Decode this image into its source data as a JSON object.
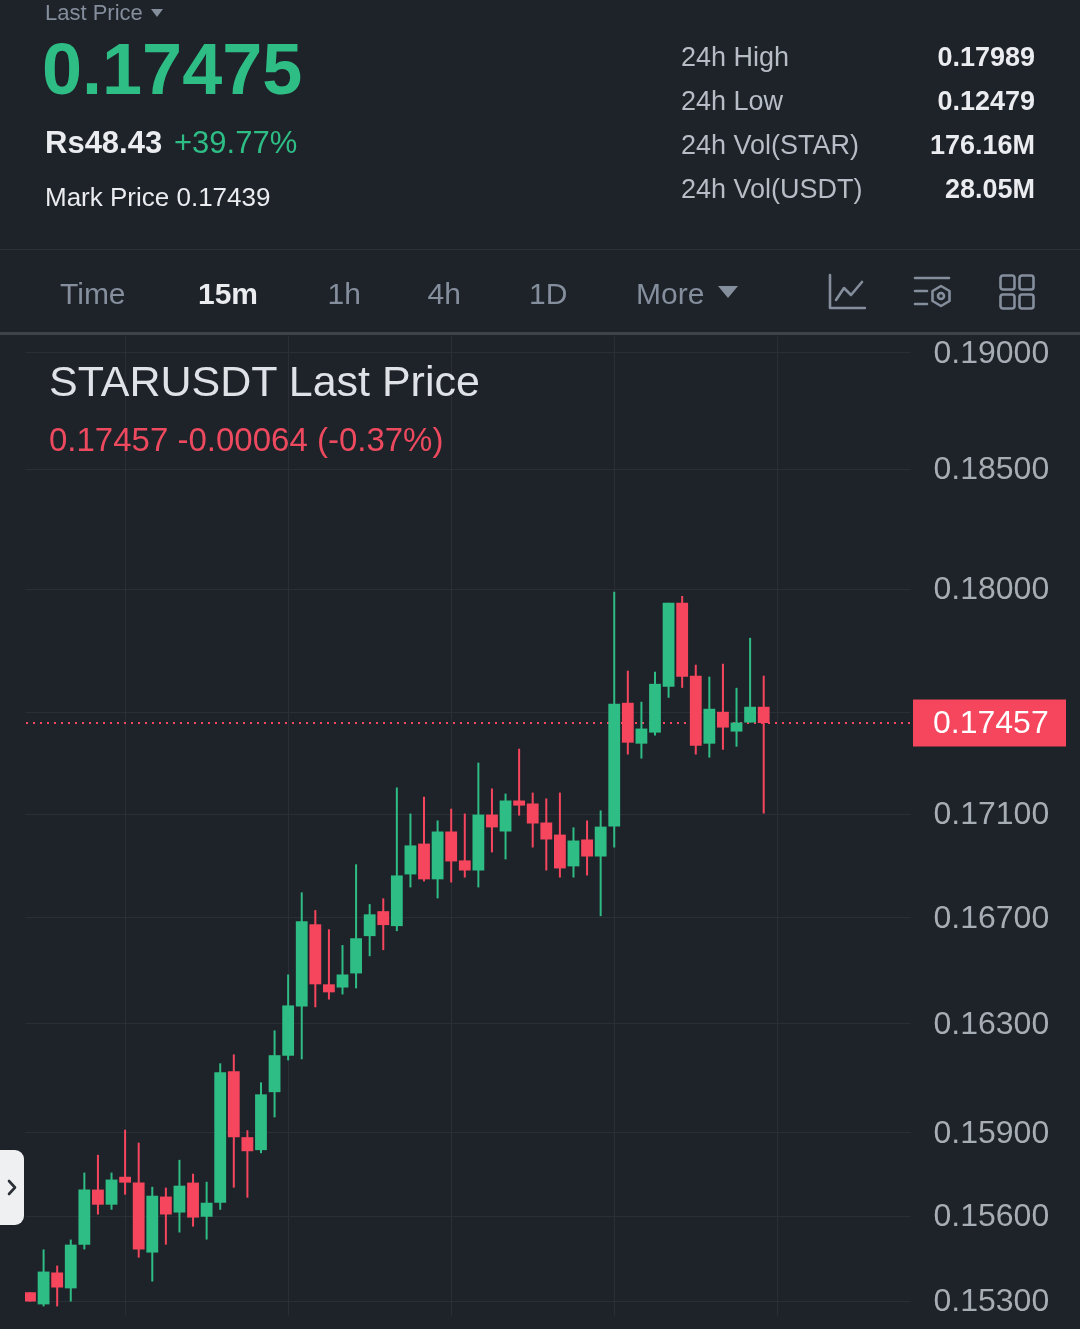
{
  "chart_data": [
    {
      "type": "other",
      "annotations": [
        "Last Price",
        "0.17475",
        "Rs48.43",
        "+39.77%",
        "Mark Price 0.17439",
        "24h High",
        "0.17989",
        "24h Low",
        "0.12479",
        "24h Vol(STAR)",
        "176.16M",
        "24h Vol(USDT)",
        "28.05M"
      ]
    },
    {
      "type": "other",
      "annotations": [
        "Time",
        "15m",
        "1h",
        "4h",
        "1D",
        "More"
      ]
    },
    {
      "type": "candlestick",
      "title": "STARUSDT Last Price",
      "subtitle": "0.17457 -0.00064 (-0.37%)",
      "categories": [
        null,
        null,
        null,
        null,
        null,
        null,
        null,
        null,
        null,
        null,
        null,
        null,
        null,
        null,
        null,
        null,
        null,
        null,
        null,
        null,
        null,
        null,
        null,
        null,
        null,
        null,
        null,
        null,
        null,
        null,
        null,
        null,
        null,
        null,
        null,
        null,
        null,
        null,
        null,
        null,
        null,
        null,
        null,
        null,
        null,
        null,
        null,
        null,
        null,
        null,
        null,
        null,
        null,
        null,
        null
      ],
      "ohlc": [
        [
          0.15329,
          0.15329,
          0.15297,
          0.15297
        ],
        [
          0.15287,
          0.1548,
          0.1528,
          0.15402
        ],
        [
          0.15399,
          0.15423,
          0.1528,
          0.15346
        ],
        [
          0.15343,
          0.15515,
          0.15297,
          0.15497
        ],
        [
          0.15497,
          0.15754,
          0.1548,
          0.15693
        ],
        [
          0.15693,
          0.15818,
          0.15604,
          0.15639
        ],
        [
          0.15639,
          0.15754,
          0.15621,
          0.15729
        ],
        [
          0.15739,
          0.15909,
          0.15675,
          0.15718
        ],
        [
          0.15718,
          0.15862,
          0.15451,
          0.1548
        ],
        [
          0.15469,
          0.15703,
          0.15367,
          0.15671
        ],
        [
          0.15668,
          0.157,
          0.15497,
          0.15604
        ],
        [
          0.15611,
          0.158,
          0.1554,
          0.15707
        ],
        [
          0.15718,
          0.1575,
          0.15561,
          0.15593
        ],
        [
          0.15596,
          0.15721,
          0.15515,
          0.15646
        ],
        [
          0.15646,
          0.16152,
          0.15621,
          0.16119
        ],
        [
          0.16123,
          0.16185,
          0.157,
          0.15882
        ],
        [
          0.15882,
          0.15907,
          0.15664,
          0.15831
        ],
        [
          0.15835,
          0.16082,
          0.15824,
          0.16038
        ],
        [
          0.16046,
          0.16274,
          0.15954,
          0.16182
        ],
        [
          0.1618,
          0.16483,
          0.16163,
          0.16367
        ],
        [
          0.16363,
          0.16795,
          0.16167,
          0.16685
        ],
        [
          0.16673,
          0.16727,
          0.1636,
          0.16446
        ],
        [
          0.16446,
          0.16654,
          0.16389,
          0.16416
        ],
        [
          0.16434,
          0.16594,
          0.16408,
          0.16483
        ],
        [
          0.16487,
          0.16903,
          0.16431,
          0.1662
        ],
        [
          0.16628,
          0.1675,
          0.16552,
          0.16711
        ],
        [
          0.16723,
          0.16772,
          0.16575,
          0.1667
        ],
        [
          0.16666,
          0.17202,
          0.16647,
          0.1686
        ],
        [
          0.16864,
          0.171,
          0.16814,
          0.16976
        ],
        [
          0.16983,
          0.17166,
          0.16837,
          0.16845
        ],
        [
          0.16845,
          0.17073,
          0.16772,
          0.1703
        ],
        [
          0.1703,
          0.17119,
          0.16833,
          0.16914
        ],
        [
          0.16918,
          0.171,
          0.16852,
          0.16879
        ],
        [
          0.16879,
          0.173,
          0.16814,
          0.17096
        ],
        [
          0.17096,
          0.17198,
          0.16949,
          0.17046
        ],
        [
          0.1703,
          0.17178,
          0.16922,
          0.17151
        ],
        [
          0.17151,
          0.17355,
          0.17092,
          0.17131
        ],
        [
          0.17139,
          0.17182,
          0.16968,
          0.17061
        ],
        [
          0.17065,
          0.17159,
          0.16879,
          0.16999
        ],
        [
          0.17018,
          0.17182,
          0.16852,
          0.16887
        ],
        [
          0.16895,
          0.17046,
          0.16852,
          0.16995
        ],
        [
          0.16999,
          0.17073,
          0.1686,
          0.16933
        ],
        [
          0.16933,
          0.17112,
          0.16704,
          0.17049
        ],
        [
          0.17049,
          0.17988,
          0.16968,
          0.17534
        ],
        [
          0.17538,
          0.17667,
          0.17332,
          0.17379
        ],
        [
          0.17375,
          0.17542,
          0.17316,
          0.17435
        ],
        [
          0.17419,
          0.17663,
          0.17407,
          0.17614
        ],
        [
          0.17602,
          0.17943,
          0.17558,
          0.17943
        ],
        [
          0.17943,
          0.17971,
          0.17598,
          0.17643
        ],
        [
          0.17647,
          0.17691,
          0.17332,
          0.17367
        ],
        [
          0.17375,
          0.17643,
          0.1732,
          0.17514
        ],
        [
          0.17502,
          0.17695,
          0.17351,
          0.17439
        ],
        [
          0.17423,
          0.17598,
          0.17363,
          0.17459
        ],
        [
          0.17459,
          0.178,
          0.17459,
          0.17522
        ],
        [
          0.17522,
          0.17647,
          0.171,
          0.17457
        ]
      ],
      "colors": [
        "#f6465d",
        "#2ebd85",
        "#f6465d",
        "#2ebd85",
        "#2ebd85",
        "#f6465d",
        "#2ebd85",
        "#f6465d",
        "#f6465d",
        "#2ebd85",
        "#f6465d",
        "#2ebd85",
        "#f6465d",
        "#2ebd85",
        "#2ebd85",
        "#f6465d",
        "#f6465d",
        "#2ebd85",
        "#2ebd85",
        "#2ebd85",
        "#2ebd85",
        "#f6465d",
        "#f6465d",
        "#2ebd85",
        "#2ebd85",
        "#2ebd85",
        "#f6465d",
        "#2ebd85",
        "#2ebd85",
        "#f6465d",
        "#2ebd85",
        "#f6465d",
        "#f6465d",
        "#2ebd85",
        "#f6465d",
        "#2ebd85",
        "#f6465d",
        "#f6465d",
        "#f6465d",
        "#f6465d",
        "#2ebd85",
        "#f6465d",
        "#2ebd85",
        "#2ebd85",
        "#f6465d",
        "#2ebd85",
        "#2ebd85",
        "#2ebd85",
        "#f6465d",
        "#f6465d",
        "#2ebd85",
        "#f6465d",
        "#2ebd85",
        "#2ebd85",
        "#f6465d"
      ],
      "ylim": [
        0.1525,
        0.1907
      ],
      "log": true,
      "yticks": [
        {
          "value": 0.153,
          "label": "0.15300"
        },
        {
          "value": 0.156,
          "label": "0.15600"
        },
        {
          "value": 0.159,
          "label": "0.15900"
        },
        {
          "value": 0.163,
          "label": "0.16300"
        },
        {
          "value": 0.167,
          "label": "0.16700"
        },
        {
          "value": 0.171,
          "label": "0.17100"
        },
        {
          "value": 0.175,
          "label": null
        },
        {
          "value": 0.18,
          "label": "0.18000"
        },
        {
          "value": 0.185,
          "label": "0.18500"
        },
        {
          "value": 0.19,
          "label": "0.19000"
        }
      ],
      "grid": true,
      "tick_labels": "y",
      "ref_lines": [
        {
          "axis": "y",
          "value": 0.17457,
          "label": "0.17457",
          "color": "#f6465d",
          "line_style": "dotted"
        }
      ]
    }
  ]
}
